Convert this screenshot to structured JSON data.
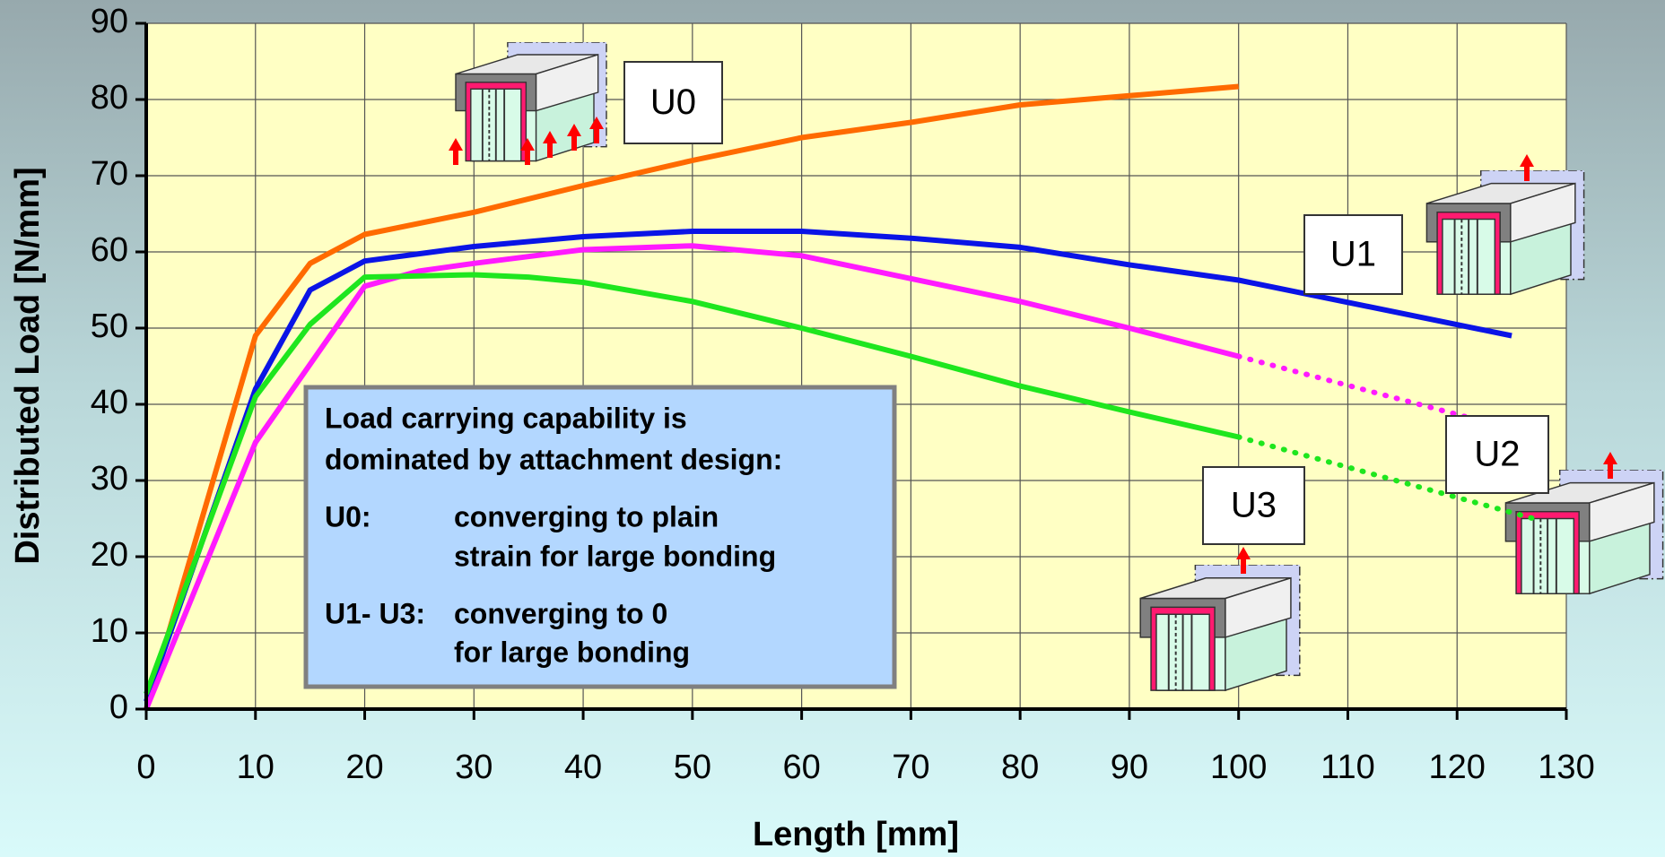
{
  "chart_data": {
    "type": "line",
    "xlabel": "Length [mm]",
    "ylabel": "Distributed Load [N/mm]",
    "xlim": [
      0,
      130
    ],
    "ylim": [
      0,
      90
    ],
    "xticks": [
      0,
      10,
      20,
      30,
      40,
      50,
      60,
      70,
      80,
      90,
      100,
      110,
      120,
      130
    ],
    "yticks": [
      0,
      10,
      20,
      30,
      40,
      50,
      60,
      70,
      80,
      90
    ],
    "grid": true,
    "series": [
      {
        "name": "U0",
        "color": "#ff6a00",
        "x": [
          0,
          10,
          15,
          20,
          30,
          40,
          50,
          60,
          70,
          80,
          90,
          100
        ],
        "values": [
          0,
          49,
          58.5,
          62.3,
          65.2,
          68.7,
          72,
          75,
          77,
          79.3,
          80.5,
          81.7
        ]
      },
      {
        "name": "U1",
        "color": "#0a14e6",
        "x": [
          0,
          10,
          15,
          20,
          30,
          40,
          50,
          60,
          70,
          80,
          90,
          100,
          125
        ],
        "values": [
          1,
          42,
          55,
          58.8,
          60.7,
          62,
          62.7,
          62.7,
          61.8,
          60.6,
          58.3,
          56.3,
          49
        ]
      },
      {
        "name": "U2",
        "color": "#ff1aff",
        "x": [
          0,
          10,
          20,
          25,
          30,
          40,
          50,
          60,
          70,
          80,
          90,
          100
        ],
        "values": [
          0,
          35,
          55.5,
          57.5,
          58.5,
          60.3,
          60.8,
          59.5,
          56.5,
          53.5,
          50,
          46.3
        ],
        "extension": {
          "x": [
            100,
            127
          ],
          "values": [
            46.3,
            36
          ]
        }
      },
      {
        "name": "U3",
        "color": "#1ee61e",
        "x": [
          0,
          10,
          15,
          20,
          30,
          35,
          40,
          50,
          60,
          70,
          80,
          90,
          100
        ],
        "values": [
          2,
          41,
          50.5,
          56.7,
          57,
          56.7,
          56,
          53.5,
          50,
          46.3,
          42.4,
          39,
          35.7
        ],
        "extension": {
          "x": [
            100,
            127
          ],
          "values": [
            35.7,
            25
          ]
        }
      }
    ],
    "annotation": [
      "Load carrying capability is",
      "dominated by attachment  design:",
      "U0:",
      "converging to plain",
      "strain for large bonding",
      "U1- U3:",
      "converging to 0",
      "for large bonding"
    ]
  }
}
